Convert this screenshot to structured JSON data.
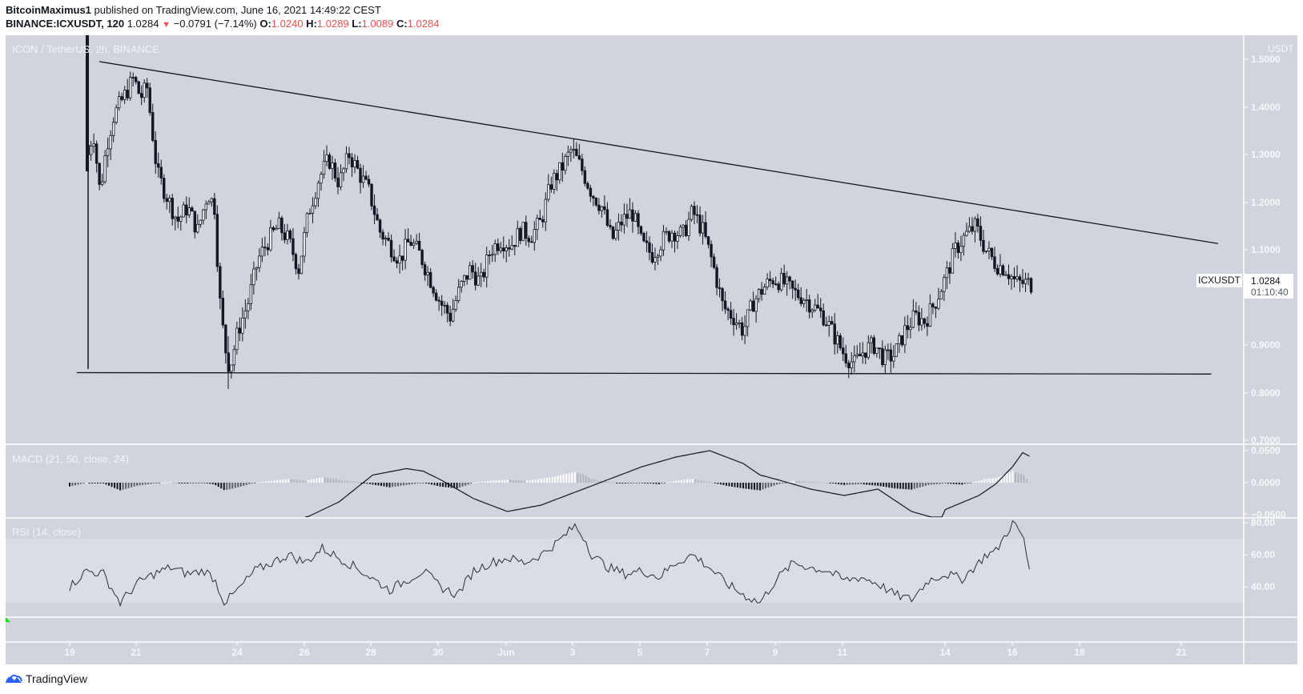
{
  "header": {
    "author": "BitcoinMaximus1",
    "published_text": "published on TradingView.com, June 16, 2021 14:49:22 CEST",
    "symbol_interval": "BINANCE:ICXUSDT, 120",
    "last": "1.0284",
    "change_arrow": "▼",
    "change": "−0.0791 (−7.14%)",
    "o_label": "O:",
    "o": "1.0240",
    "h_label": "H:",
    "h": "1.0289",
    "l_label": "L:",
    "l": "1.0089",
    "c_label": "C:",
    "c": "1.0284"
  },
  "main_panel": {
    "title": "ICON / TetherUS, 2h, BINANCE",
    "currency": "USDT",
    "price_ticks": [
      "1.5000",
      "1.4000",
      "1.3000",
      "1.2000",
      "1.1000",
      "0.9000",
      "0.8000",
      "0.7000"
    ],
    "symbol_tag": "ICXUSDT",
    "current_price": "1.0284",
    "countdown": "01:10:40"
  },
  "macd_panel": {
    "title": "MACD (21, 50, close, 24)",
    "ticks": [
      "0.0500",
      "0.0000",
      "−0.0500"
    ]
  },
  "rsi_panel": {
    "title": "RSI (14, close)",
    "ticks": [
      "80.00",
      "60.00",
      "40.00"
    ]
  },
  "time_axis": {
    "labels": [
      "19",
      "21",
      "24",
      "26",
      "28",
      "30",
      "Jun",
      "3",
      "5",
      "7",
      "9",
      "11",
      "14",
      "16",
      "18",
      "21"
    ]
  },
  "footer": {
    "brand": "TradingView"
  },
  "colors": {
    "background": "#d1d4dc",
    "grid_separator": "#ffffff",
    "candle_up_fill": "#ffffff",
    "candle_down_fill": "#131722",
    "candle_outline": "#131722",
    "trendline": "#131722",
    "hist_pos_rising": "#ffffff",
    "hist_pos_falling": "#b2b5be",
    "hist_neg_falling": "#131722",
    "hist_neg_rising": "#5d606b",
    "rsi_band": "#dadde3",
    "negative": "#ef5350",
    "brand_blue": "#2962ff"
  },
  "chart_data": {
    "type": "candlestick",
    "title": "ICON / TetherUS, 2h, BINANCE",
    "xlabel": "",
    "ylabel": "USDT",
    "ylim": [
      0.68,
      1.55
    ],
    "x_tick_labels": [
      "May 19",
      "May 21",
      "May 24",
      "May 26",
      "May 28",
      "May 30",
      "Jun 1",
      "Jun 3",
      "Jun 5",
      "Jun 7",
      "Jun 9",
      "Jun 11",
      "Jun 14",
      "Jun 16",
      "Jun 18",
      "Jun 21"
    ],
    "close_path": {
      "note": "approximate closing-price waypoints read from chart; x = days since May 19 00:00",
      "x": [
        0.55,
        0.7,
        0.9,
        1.1,
        1.3,
        1.6,
        1.9,
        2.1,
        2.3,
        2.6,
        2.9,
        3.2,
        3.5,
        3.8,
        4.1,
        4.3,
        4.45,
        4.6,
        4.75,
        5.0,
        5.3,
        5.6,
        5.9,
        6.2,
        6.5,
        6.8,
        7.1,
        7.4,
        7.7,
        8.0,
        8.3,
        8.6,
        8.9,
        9.2,
        9.5,
        9.8,
        10.1,
        10.4,
        10.7,
        11.0,
        11.3,
        11.6,
        11.9,
        12.2,
        12.5,
        12.8,
        13.1,
        13.4,
        13.7,
        14.0,
        14.3,
        14.6,
        14.9,
        15.2,
        15.5,
        15.8,
        16.1,
        16.4,
        16.7,
        17.0,
        17.3,
        17.6,
        17.9,
        18.2,
        18.5,
        18.8,
        19.1,
        19.4,
        19.7,
        20.0,
        20.3,
        20.6,
        20.9,
        21.2,
        21.5,
        21.8,
        22.1,
        22.4,
        22.7,
        23.0,
        23.3,
        23.6,
        23.9,
        24.2,
        24.5,
        24.8,
        25.1,
        25.4,
        25.7,
        26.0,
        26.3,
        26.6,
        26.9,
        27.2,
        27.5,
        27.8,
        28.1,
        28.4,
        28.55
      ],
      "close": [
        1.3,
        1.35,
        1.22,
        1.32,
        1.38,
        1.42,
        1.46,
        1.42,
        1.44,
        1.26,
        1.21,
        1.16,
        1.19,
        1.14,
        1.22,
        1.19,
        1.0,
        0.9,
        0.85,
        0.93,
        0.99,
        1.08,
        1.12,
        1.15,
        1.12,
        1.06,
        1.18,
        1.25,
        1.29,
        1.24,
        1.3,
        1.26,
        1.22,
        1.14,
        1.11,
        1.08,
        1.12,
        1.09,
        1.04,
        0.99,
        0.96,
        1.02,
        1.06,
        1.03,
        1.1,
        1.12,
        1.11,
        1.14,
        1.13,
        1.16,
        1.24,
        1.27,
        1.31,
        1.27,
        1.22,
        1.19,
        1.12,
        1.16,
        1.18,
        1.11,
        1.09,
        1.12,
        1.14,
        1.13,
        1.18,
        1.14,
        1.07,
        0.98,
        0.96,
        0.93,
        0.99,
        1.02,
        1.04,
        1.03,
        1.01,
        1.0,
        0.98,
        0.96,
        0.92,
        0.88,
        0.86,
        0.89,
        0.9,
        0.87,
        0.88,
        0.93,
        0.96,
        0.95,
        0.99,
        1.04,
        1.1,
        1.13,
        1.15,
        1.1,
        1.07,
        1.06,
        1.03,
        1.03,
        1.028
      ]
    },
    "trendlines": [
      {
        "name": "descending resistance",
        "from": {
          "x_day": 0.88,
          "price": 1.495
        },
        "to": {
          "x_day": 34.1,
          "price": 1.113
        }
      },
      {
        "name": "horizontal support",
        "from": {
          "x_day": 0.21,
          "price": 0.842
        },
        "to": {
          "x_day": 33.9,
          "price": 0.839
        }
      }
    ],
    "key_levels": {
      "high": 1.53,
      "low": 0.79,
      "last_close": 1.0284
    },
    "indicators": [
      {
        "name": "MACD (21, 50, close, 24)",
        "ylim": [
          -0.055,
          0.06
        ],
        "macd_line": {
          "x": [
            7.0,
            8.0,
            9.0,
            10.0,
            10.5,
            11.0,
            12.0,
            13.0,
            14.0,
            14.5,
            15.0,
            16.0,
            17.0,
            18.0,
            19.0,
            20.0,
            20.5,
            21.0,
            22.0,
            23.0,
            24.0,
            25.0,
            26.0,
            27.0,
            28.0,
            28.55
          ],
          "values": [
            -0.055,
            -0.03,
            0.012,
            0.022,
            0.018,
            0.005,
            -0.025,
            -0.045,
            -0.035,
            -0.025,
            -0.015,
            0.005,
            0.025,
            0.04,
            0.05,
            0.03,
            0.012,
            0.005,
            -0.01,
            -0.02,
            -0.01,
            -0.045,
            -0.06,
            -0.035,
            -0.02,
            0.0
          ]
        },
        "macd_line_tail": {
          "x": [
            26.0,
            27.0,
            27.5,
            28.0,
            28.3,
            28.55
          ],
          "values": [
            -0.042,
            -0.02,
            -0.002,
            0.025,
            0.047,
            0.04
          ]
        },
        "histogram_note": "negative troughs near May 19-20, May 29-30, Jun 3-5, Jun 7-9, Jun 11-12; positive peaks near May 25-27, Jun 2-3, Jun 15-16"
      },
      {
        "name": "RSI (14, close)",
        "ylim": [
          10,
          85
        ],
        "band": [
          30,
          70
        ],
        "x": [
          0.0,
          0.5,
          1.0,
          1.5,
          2.0,
          2.5,
          3.0,
          3.5,
          4.0,
          4.3,
          4.6,
          5.0,
          5.5,
          6.0,
          6.5,
          7.0,
          7.5,
          8.0,
          8.5,
          9.0,
          9.5,
          10.0,
          10.5,
          11.0,
          11.5,
          12.0,
          12.5,
          13.0,
          13.5,
          14.0,
          14.5,
          15.0,
          15.3,
          15.5,
          16.0,
          16.5,
          17.0,
          17.5,
          18.0,
          18.5,
          19.0,
          19.5,
          20.0,
          20.5,
          21.0,
          21.5,
          22.0,
          22.5,
          23.0,
          23.5,
          24.0,
          24.5,
          25.0,
          25.5,
          26.0,
          26.5,
          27.0,
          27.2,
          27.5,
          28.0,
          28.3,
          28.55
        ],
        "values": [
          40,
          50,
          48,
          30,
          42,
          48,
          52,
          48,
          50,
          45,
          30,
          38,
          50,
          55,
          60,
          55,
          64,
          58,
          52,
          45,
          38,
          44,
          50,
          40,
          35,
          50,
          55,
          58,
          55,
          60,
          68,
          78,
          70,
          60,
          52,
          48,
          50,
          46,
          55,
          60,
          52,
          42,
          35,
          30,
          45,
          55,
          52,
          50,
          44,
          46,
          42,
          35,
          32,
          44,
          48,
          45,
          55,
          60,
          62,
          80,
          72,
          46
        ]
      }
    ]
  }
}
